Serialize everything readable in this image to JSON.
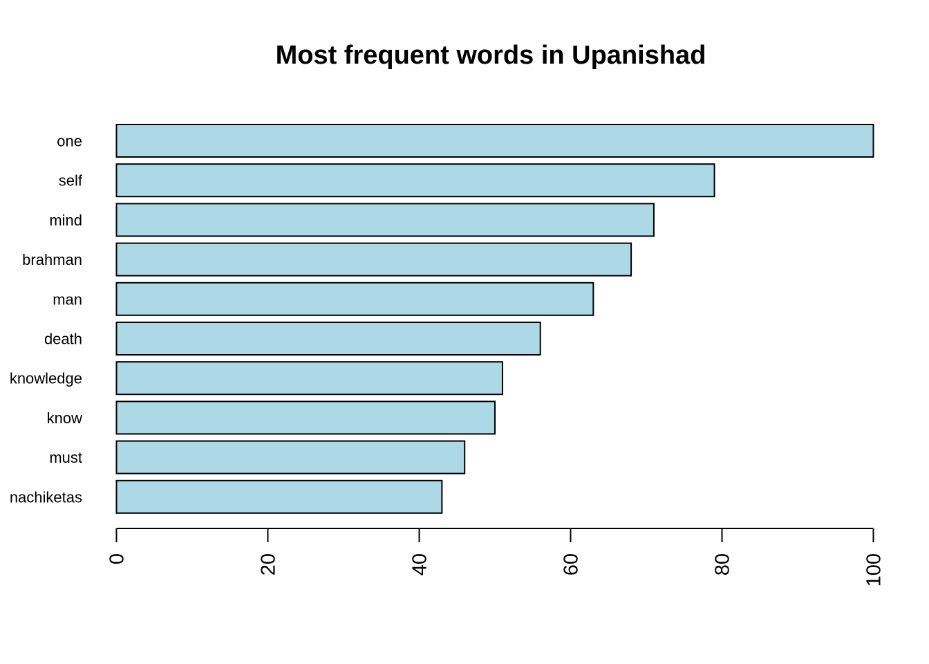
{
  "chart_data": {
    "type": "bar",
    "orientation": "horizontal",
    "title": "Most frequent words in Upanishad",
    "xlabel": "",
    "ylabel": "",
    "categories": [
      "one",
      "self",
      "mind",
      "brahman",
      "man",
      "death",
      "knowledge",
      "know",
      "must",
      "nachiketas"
    ],
    "values": [
      100,
      79,
      71,
      68,
      63,
      56,
      51,
      50,
      46,
      43
    ],
    "xlim": [
      0,
      100
    ],
    "x_ticks": [
      "0",
      "20",
      "40",
      "60",
      "80",
      "100"
    ],
    "tick_label_rotation": "vertical",
    "grid": false,
    "legend": "none",
    "colors": {
      "bar_fill": "#add8e6",
      "bar_stroke": "#000000",
      "axis": "#000000",
      "background": "#ffffff"
    }
  }
}
